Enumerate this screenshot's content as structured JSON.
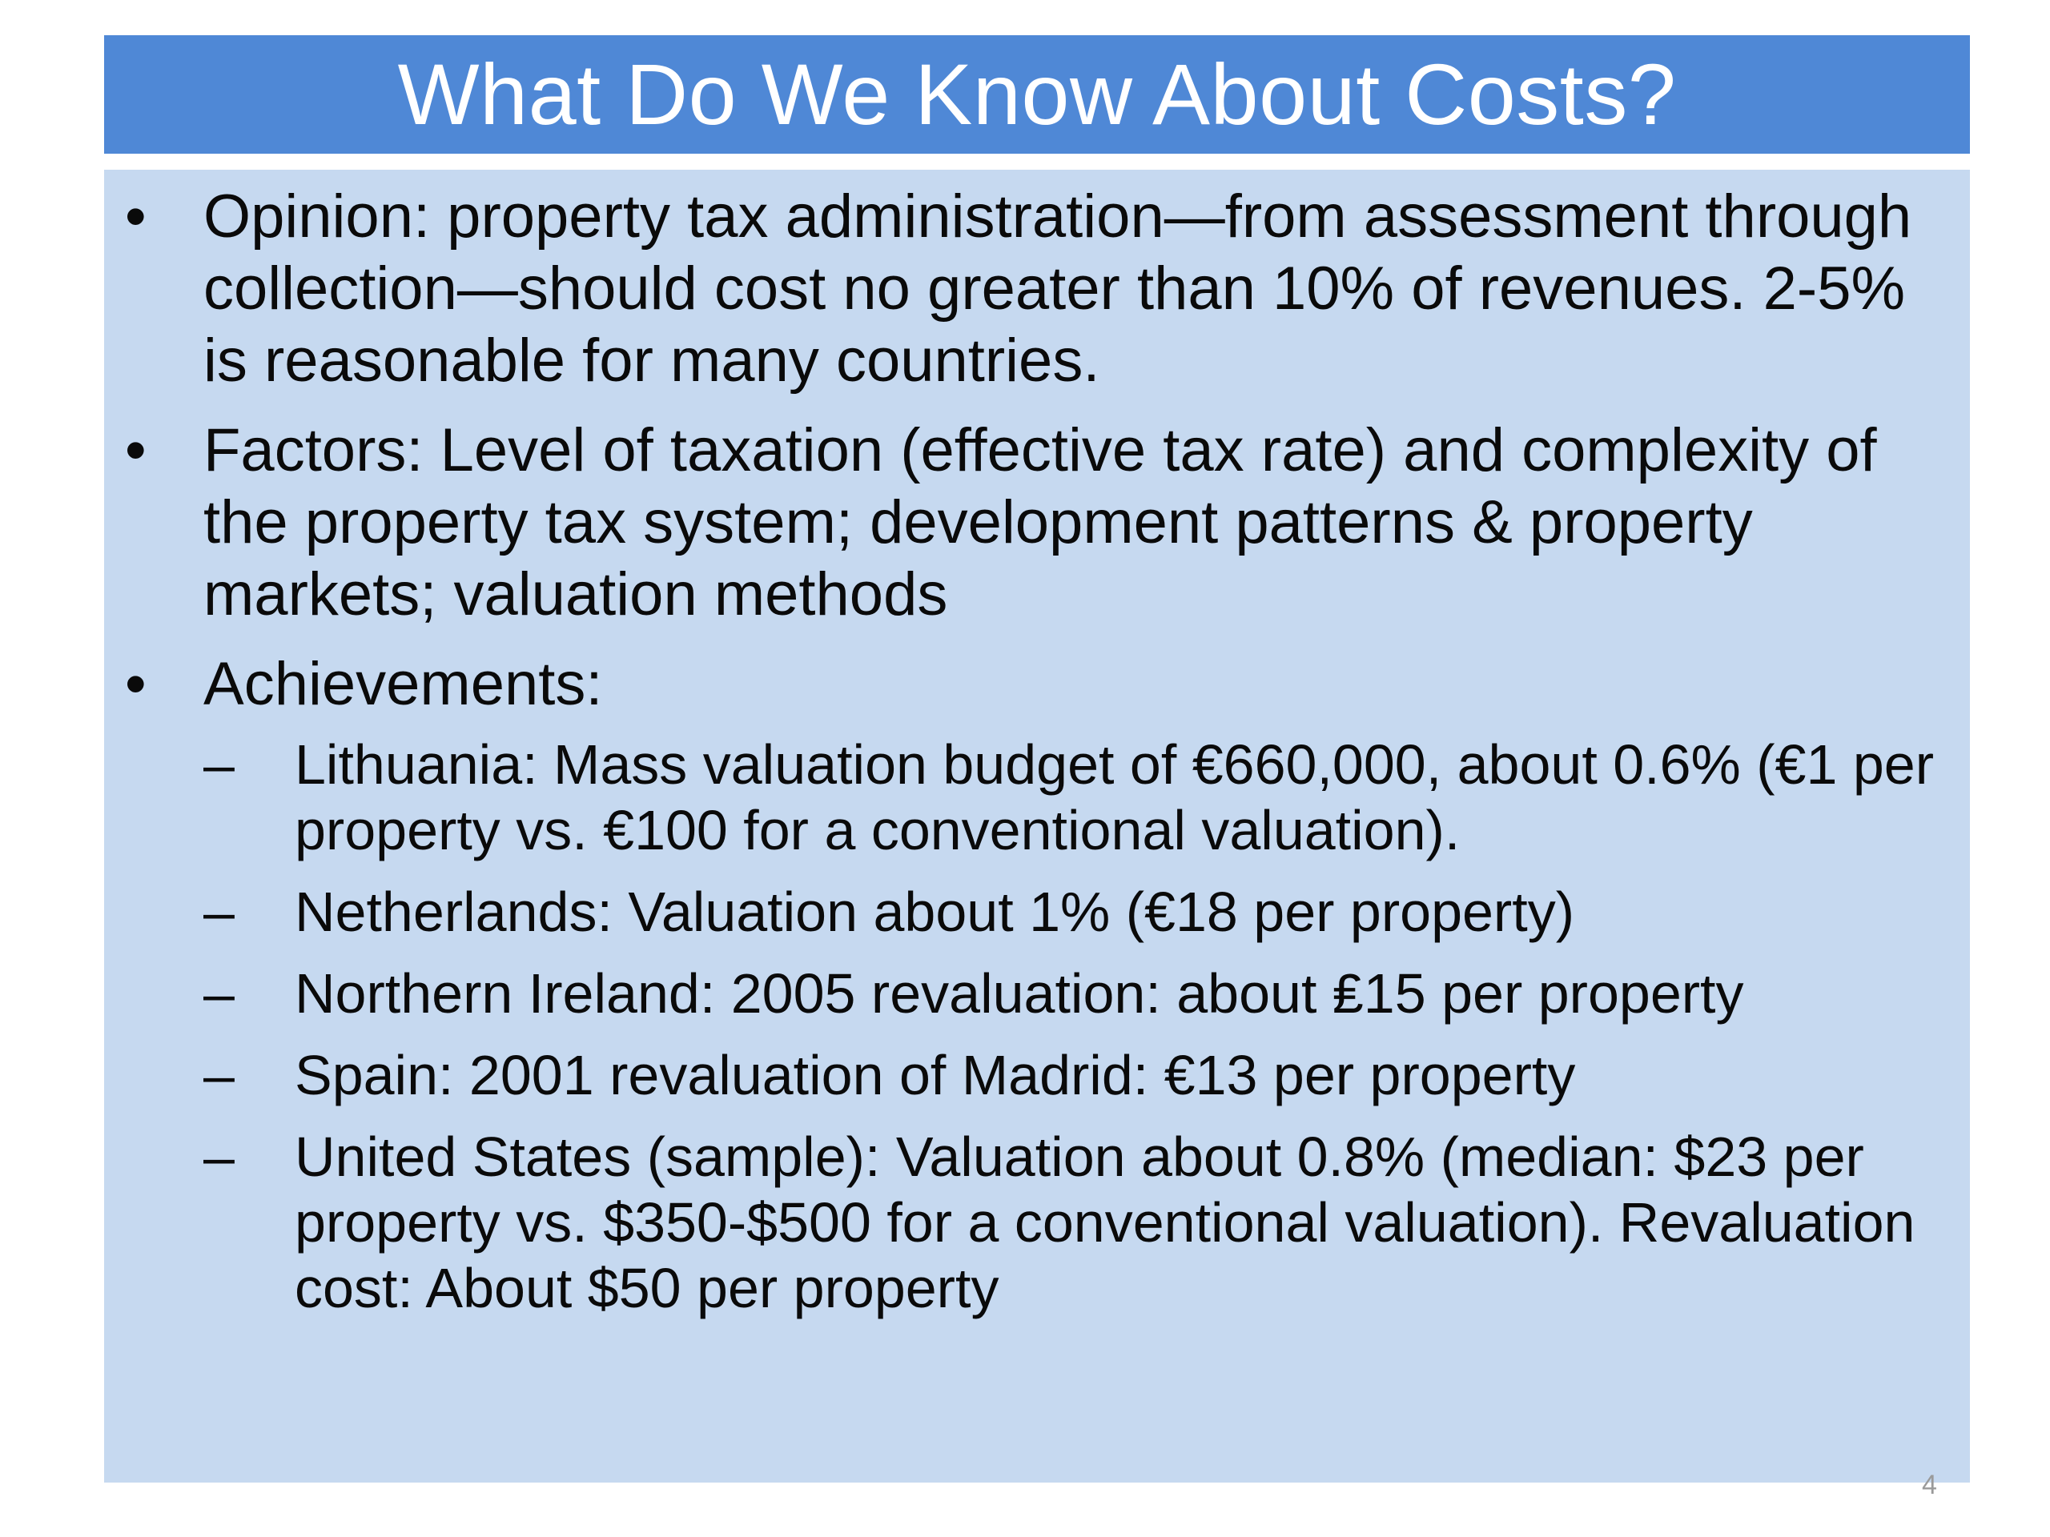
{
  "slide": {
    "title": "What Do We Know About Costs?",
    "bullet_symbol": "•",
    "sub_bullet_symbol": "–",
    "bullets": [
      {
        "text": "Opinion: property tax administration—from assessment through collection—should cost no greater than 10% of revenues. 2-5% is reasonable for many countries."
      },
      {
        "text": "Factors: Level of taxation (effective tax rate) and complexity of the property tax system; development patterns & property markets; valuation methods"
      },
      {
        "text": "Achievements:",
        "sub_items": [
          "Lithuania: Mass valuation budget of €660,000, about 0.6% (€1 per property vs. €100 for a conventional valuation).",
          "Netherlands: Valuation about 1% (€18 per property)",
          "Northern Ireland: 2005 revaluation: about ₤15 per property",
          "Spain: 2001 revaluation of Madrid: €13 per property",
          "United States (sample): Valuation about 0.8% (median: $23 per property vs. $350-$500 for a conventional valuation). Revaluation cost: About $50 per property"
        ]
      }
    ],
    "page_number": "4"
  },
  "colors": {
    "title_bar": "#4f88d6",
    "content_background": "#c6d9f0",
    "title_text": "#ffffff",
    "body_text": "#0a0a0a",
    "page_number": "#9a9a9a"
  }
}
